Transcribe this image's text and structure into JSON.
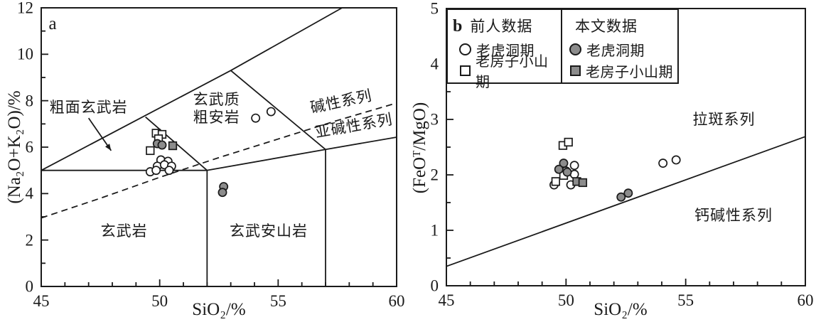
{
  "colors": {
    "line": "#1a1a1a",
    "symbol_gray": "#8c8c8c",
    "background": "#ffffff"
  },
  "legend": {
    "col1_header": "前人数据",
    "col2_header": "本文数据",
    "rows": [
      {
        "col1_label": "老虎洞期",
        "col1_symbol": "open-circle",
        "col2_label": "老虎洞期",
        "col2_symbol": "filled-circle"
      },
      {
        "col1_label": "老房子小山期",
        "col1_symbol": "open-square",
        "col2_label": "老房子小山期",
        "col2_symbol": "filled-square"
      }
    ]
  },
  "chart_data": [
    {
      "id": "a",
      "type": "scatter",
      "panel_label": "a",
      "xlabel": "SiO₂/%",
      "ylabel": "(Na₂O+K₂O)/%",
      "xlim": [
        45,
        60
      ],
      "ylim": [
        0,
        12
      ],
      "xticks": [
        45,
        50,
        55,
        60
      ],
      "yticks": [
        0,
        2,
        4,
        6,
        8,
        10,
        12
      ],
      "grid": false,
      "field_labels": [
        {
          "text": "粗面玄武岩",
          "x": 47.0,
          "y": 7.7,
          "rot": 0
        },
        {
          "text": "玄武质",
          "x": 52.4,
          "y": 8.05,
          "rot": 0
        },
        {
          "text": "粗安岩",
          "x": 52.4,
          "y": 7.3,
          "rot": 0
        },
        {
          "text": "碱性系列",
          "x": 57.65,
          "y": 7.95,
          "rot": -12
        },
        {
          "text": "亚碱性系列",
          "x": 58.2,
          "y": 6.92,
          "rot": -10
        },
        {
          "text": "玄武岩",
          "x": 48.5,
          "y": 2.4,
          "rot": 0
        },
        {
          "text": "玄武安山岩",
          "x": 54.6,
          "y": 2.4,
          "rot": 0
        }
      ],
      "arrow": {
        "from": [
          47.0,
          7.25
        ],
        "to": [
          47.95,
          5.85
        ]
      },
      "boundaries_solid": [
        [
          [
            45,
            5
          ],
          [
            52,
            5
          ]
        ],
        [
          [
            52,
            0
          ],
          [
            52,
            5
          ]
        ],
        [
          [
            57,
            0
          ],
          [
            57,
            5.9
          ]
        ],
        [
          [
            45,
            5
          ],
          [
            53,
            9.3
          ],
          [
            57.7,
            12
          ]
        ],
        [
          [
            49.4,
            7.3
          ],
          [
            52,
            5
          ]
        ],
        [
          [
            53,
            9.3
          ],
          [
            57,
            5.9
          ]
        ],
        [
          [
            52,
            5
          ],
          [
            57,
            5.9
          ]
        ],
        [
          [
            57,
            5.9
          ],
          [
            60,
            6.43
          ]
        ]
      ],
      "boundary_dashed": [
        [
          45,
          2.95
        ],
        [
          47.5,
          3.8
        ],
        [
          50,
          4.7
        ],
        [
          52.5,
          5.55
        ],
        [
          55,
          6.35
        ],
        [
          57.5,
          7.15
        ],
        [
          60,
          7.9
        ]
      ],
      "series": [
        {
          "name": "前人数据 老虎洞期",
          "symbol": "circle",
          "fill": "open",
          "points": [
            [
              50.05,
              5.45
            ],
            [
              50.35,
              5.39
            ],
            [
              49.9,
              5.18
            ],
            [
              50.2,
              5.24
            ],
            [
              50.5,
              5.18
            ],
            [
              49.6,
              4.94
            ],
            [
              49.85,
              5.0
            ],
            [
              50.4,
              5.0
            ],
            [
              54.05,
              7.25
            ],
            [
              54.7,
              7.53
            ]
          ]
        },
        {
          "name": "前人数据 老房子小山期",
          "symbol": "square",
          "fill": "open",
          "points": [
            [
              49.85,
              6.6
            ],
            [
              50.1,
              6.55
            ],
            [
              49.95,
              6.36
            ],
            [
              49.6,
              5.85
            ]
          ]
        },
        {
          "name": "本文数据 老虎洞期",
          "symbol": "circle",
          "fill": "gray",
          "points": [
            [
              49.9,
              6.15
            ],
            [
              50.1,
              6.09
            ],
            [
              52.7,
              4.3
            ],
            [
              52.65,
              4.05
            ]
          ]
        },
        {
          "name": "本文数据 老房子小山期",
          "symbol": "square",
          "fill": "gray",
          "points": [
            [
              50.55,
              6.06
            ]
          ]
        }
      ]
    },
    {
      "id": "b",
      "type": "scatter",
      "panel_label": "b",
      "xlabel": "SiO₂/%",
      "ylabel": "(FeOᵀ/MgO)",
      "xlim": [
        45,
        60
      ],
      "ylim": [
        0,
        5
      ],
      "xticks": [
        45,
        50,
        55,
        60
      ],
      "yticks": [
        0,
        1,
        2,
        3,
        4,
        5
      ],
      "grid": false,
      "field_labels": [
        {
          "text": "拉斑系列",
          "x": 56.6,
          "y": 3.0,
          "rot": 0
        },
        {
          "text": "钙碱性系列",
          "x": 57.0,
          "y": 1.27,
          "rot": 0
        }
      ],
      "boundaries_solid": [
        [
          [
            45,
            0.35
          ],
          [
            60,
            2.69
          ]
        ]
      ],
      "series": [
        {
          "name": "前人数据 老虎洞期",
          "symbol": "circle",
          "fill": "open",
          "points": [
            [
              50.35,
              2.17
            ],
            [
              50.0,
              2.07
            ],
            [
              50.35,
              2.01
            ],
            [
              50.2,
              1.82
            ],
            [
              49.5,
              1.82
            ],
            [
              54.05,
              2.21
            ],
            [
              54.6,
              2.27
            ]
          ]
        },
        {
          "name": "前人数据 老房子小山期",
          "symbol": "square",
          "fill": "open",
          "points": [
            [
              49.87,
              2.53
            ],
            [
              50.1,
              2.59
            ],
            [
              49.9,
              1.99
            ],
            [
              49.57,
              1.88
            ]
          ]
        },
        {
          "name": "本文数据 老虎洞期",
          "symbol": "circle",
          "fill": "gray",
          "points": [
            [
              49.9,
              2.21
            ],
            [
              49.7,
              2.1
            ],
            [
              50.05,
              2.05
            ],
            [
              52.3,
              1.6
            ],
            [
              52.6,
              1.67
            ]
          ]
        },
        {
          "name": "本文数据 老房子小山期",
          "symbol": "square",
          "fill": "gray",
          "points": [
            [
              50.45,
              1.88
            ],
            [
              50.7,
              1.86
            ]
          ]
        }
      ]
    }
  ]
}
